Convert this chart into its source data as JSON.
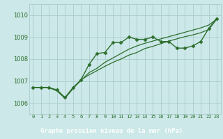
{
  "background_color": "#cce8e8",
  "plot_bg": "#cce8e8",
  "bottom_bar_color": "#2d6e2d",
  "line_color": "#2d6e2d",
  "title": "Graphe pression niveau de la mer (hPa)",
  "xlim": [
    -0.5,
    23.5
  ],
  "ylim": [
    1005.5,
    1010.5
  ],
  "yticks": [
    1006,
    1007,
    1008,
    1009,
    1010
  ],
  "xticks": [
    0,
    1,
    2,
    3,
    4,
    5,
    6,
    7,
    8,
    9,
    10,
    11,
    12,
    13,
    14,
    15,
    16,
    17,
    18,
    19,
    20,
    21,
    22,
    23
  ],
  "series_main": [
    1006.7,
    1006.7,
    1006.7,
    1006.6,
    1006.25,
    1006.7,
    1007.05,
    1007.75,
    1008.25,
    1008.3,
    1008.75,
    1008.75,
    1009.0,
    1008.9,
    1008.9,
    1009.0,
    1008.8,
    1008.8,
    1008.5,
    1008.5,
    1008.6,
    1008.8,
    1009.4,
    1009.85
  ],
  "series_line2": [
    1006.7,
    1006.7,
    1006.7,
    1006.55,
    1006.22,
    1006.65,
    1007.05,
    1007.28,
    1007.47,
    1007.67,
    1007.85,
    1008.0,
    1008.18,
    1008.3,
    1008.48,
    1008.58,
    1008.7,
    1008.82,
    1008.92,
    1009.02,
    1009.1,
    1009.2,
    1009.35,
    1009.82
  ],
  "series_line3": [
    1006.7,
    1006.7,
    1006.7,
    1006.58,
    1006.22,
    1006.68,
    1007.02,
    1007.38,
    1007.58,
    1007.85,
    1008.05,
    1008.25,
    1008.45,
    1008.6,
    1008.72,
    1008.82,
    1008.92,
    1009.02,
    1009.12,
    1009.22,
    1009.32,
    1009.42,
    1009.55,
    1009.82
  ]
}
